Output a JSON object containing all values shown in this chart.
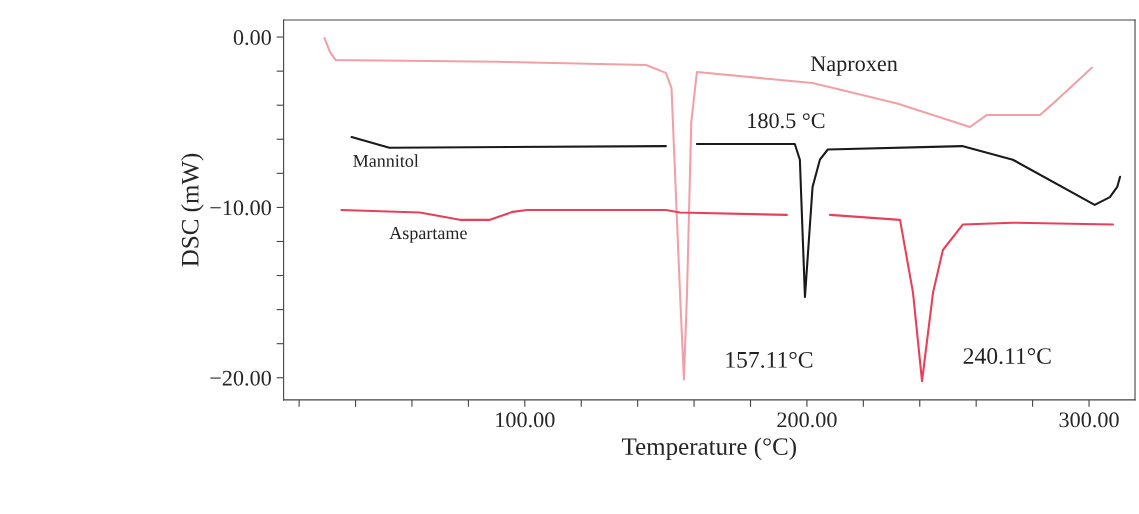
{
  "chart_data": {
    "type": "line",
    "xlabel": "Temperature (°C)",
    "ylabel": "DSC (mW)",
    "xlim": [
      14.5,
      316.3
    ],
    "ylim": [
      -21.3,
      1.0
    ],
    "xticks": [
      {
        "value": 20,
        "label": null
      },
      {
        "value": 40,
        "label": null
      },
      {
        "value": 60,
        "label": null
      },
      {
        "value": 80,
        "label": null
      },
      {
        "value": 100,
        "label": "100.00"
      },
      {
        "value": 120,
        "label": null
      },
      {
        "value": 140,
        "label": null
      },
      {
        "value": 160,
        "label": null
      },
      {
        "value": 180,
        "label": null
      },
      {
        "value": 200,
        "label": "200.00"
      },
      {
        "value": 220,
        "label": null
      },
      {
        "value": 240,
        "label": null
      },
      {
        "value": 260,
        "label": null
      },
      {
        "value": 280,
        "label": null
      },
      {
        "value": 300,
        "label": "300.00"
      }
    ],
    "yticks": [
      {
        "value": 0,
        "label": "0.00"
      },
      {
        "value": -2,
        "label": null
      },
      {
        "value": -4,
        "label": null
      },
      {
        "value": -6,
        "label": null
      },
      {
        "value": -8,
        "label": null
      },
      {
        "value": -10,
        "label": "−10.00"
      },
      {
        "value": -12,
        "label": null
      },
      {
        "value": -14,
        "label": null
      },
      {
        "value": -16,
        "label": null
      },
      {
        "value": -18,
        "label": null
      },
      {
        "value": -20,
        "label": "−20.00"
      }
    ],
    "grid": false,
    "marker": "none",
    "line_style": "solid",
    "series": [
      {
        "name": "Naproxen",
        "color": "#f2a0a8",
        "x": [
          29,
          31,
          33,
          90,
          143,
          150,
          152,
          155,
          156.4,
          157.5,
          159,
          161,
          202,
          232,
          257.8,
          263.8,
          282.6,
          288.6,
          301
        ],
        "values": [
          -0.06,
          -0.9,
          -1.35,
          -1.45,
          -1.64,
          -2.1,
          -3.0,
          -15.0,
          -20.1,
          -15.0,
          -5.0,
          -2.05,
          -2.7,
          -3.9,
          -5.28,
          -4.57,
          -4.57,
          -3.7,
          -1.8
        ]
      },
      {
        "name": "Mannitol",
        "color": "#1a1a1a",
        "x": [
          38.6,
          52,
          150,
          155,
          161,
          195.7,
          197.5,
          199.3,
          202,
          204.6,
          207.4,
          255,
          273,
          302,
          307.4,
          310,
          311
        ],
        "values": [
          -5.87,
          -6.5,
          -6.4,
          null,
          -6.28,
          -6.28,
          -7.2,
          -15.25,
          -8.8,
          -7.2,
          -6.6,
          -6.4,
          -7.2,
          -9.85,
          -9.4,
          -8.8,
          -8.2
        ]
      },
      {
        "name": "Aspartame",
        "color": "#e8405a",
        "x": [
          35,
          62.8,
          77,
          87.6,
          95.7,
          100.7,
          150,
          155,
          192.9,
          200,
          208.2,
          233,
          237.6,
          240.8,
          244.7,
          248.2,
          255.3,
          273,
          308.5
        ],
        "values": [
          -10.15,
          -10.3,
          -10.73,
          -10.73,
          -10.26,
          -10.15,
          -10.15,
          -10.3,
          -10.44,
          null,
          -10.44,
          -10.73,
          -15.0,
          -20.2,
          -15.0,
          -12.5,
          -11.0,
          -10.9,
          -11.0
        ]
      }
    ],
    "annotations": [
      "180.5 °C",
      "157.11°C",
      "240.11°C"
    ]
  }
}
